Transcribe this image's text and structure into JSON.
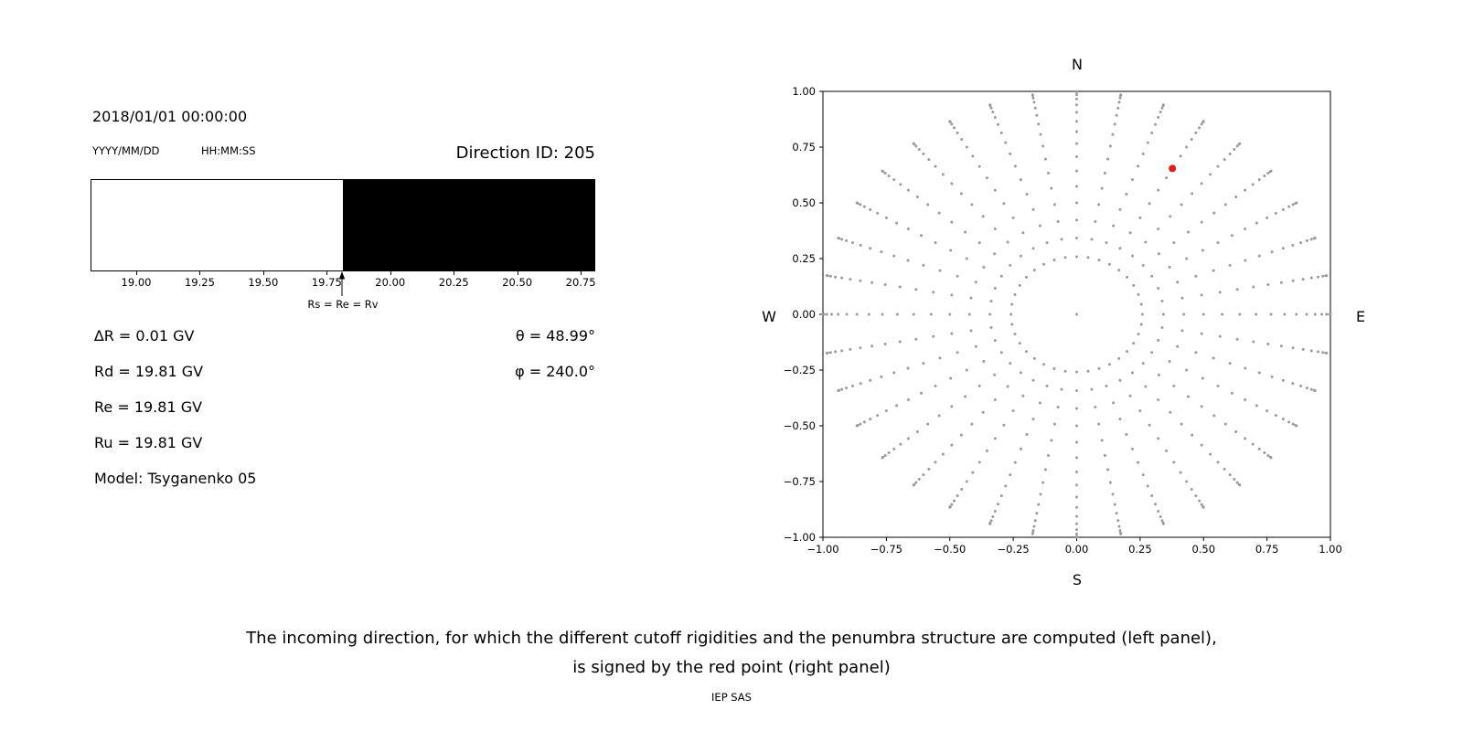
{
  "header": {
    "datetime": "2018/01/01 00:00:00",
    "date_format_label": "YYYY/MM/DD",
    "time_format_label": "HH:MM:SS",
    "direction_id": "Direction ID: 205"
  },
  "info": {
    "lines": [
      "∆R = 0.01 GV",
      "Rd = 19.81 GV",
      "Re = 19.81 GV",
      "Ru = 19.81 GV",
      "Model: Tsyganenko 05"
    ],
    "theta": "θ = 48.99°",
    "phi": "φ = 240.0°"
  },
  "caption": {
    "line1": "The incoming direction, for which the different cutoff rigidities and the penumbra structure are computed (left panel),",
    "line2": "is signed by the red point (right panel)",
    "credit": "IEP SAS"
  },
  "chart_data": [
    {
      "type": "heatmap",
      "title": "Penumbra structure (rigidity scan, white = allowed, black = forbidden)",
      "xlim": [
        18.82,
        20.8
      ],
      "xticks": [
        19.0,
        19.25,
        19.5,
        19.75,
        20.0,
        20.25,
        20.5,
        20.75
      ],
      "segments": [
        {
          "from": 18.82,
          "to": 19.81,
          "value": "allowed",
          "color": "#ffffff"
        },
        {
          "from": 19.81,
          "to": 20.8,
          "value": "forbidden",
          "color": "#000000"
        }
      ],
      "annotation": {
        "text": "Rs = Re = Rv",
        "x": 19.81
      },
      "rigidities": {
        "delta_R_GV": 0.01,
        "Rd_GV": 19.81,
        "Re_GV": 19.81,
        "Ru_GV": 19.81
      },
      "model": "Tsyganenko 05",
      "theta_deg": 48.99,
      "phi_deg": 240.0
    },
    {
      "type": "scatter",
      "title": "Incoming direction grid (N/E/S/W sky map)",
      "xlim": [
        -1.0,
        1.0
      ],
      "ylim": [
        -1.0,
        1.0
      ],
      "xticks": [
        -1.0,
        -0.75,
        -0.5,
        -0.25,
        0.0,
        0.25,
        0.5,
        0.75,
        1.0
      ],
      "yticks": [
        -1.0,
        -0.75,
        -0.5,
        -0.25,
        0.0,
        0.25,
        0.5,
        0.75,
        1.0
      ],
      "compass": {
        "top": "N",
        "bottom": "S",
        "left": "W",
        "right": "E"
      },
      "grid_points": {
        "description": "radial spokes of direction grid, r = sin(zenith), one spoke per azimuth",
        "azimuth_start_deg": 0,
        "azimuth_step_deg": 10,
        "azimuth_count": 36,
        "zenith_angles_deg": [
          15,
          20,
          25,
          30,
          35,
          40,
          45,
          50,
          55,
          60,
          65,
          70,
          75,
          80,
          85,
          90
        ],
        "center_dot": true,
        "color": "#9b9b9b"
      },
      "red_point": {
        "x": 0.377,
        "y": 0.654,
        "theta_deg": 48.99,
        "phi_deg": 240.0,
        "color": "#e11d1d"
      }
    }
  ]
}
